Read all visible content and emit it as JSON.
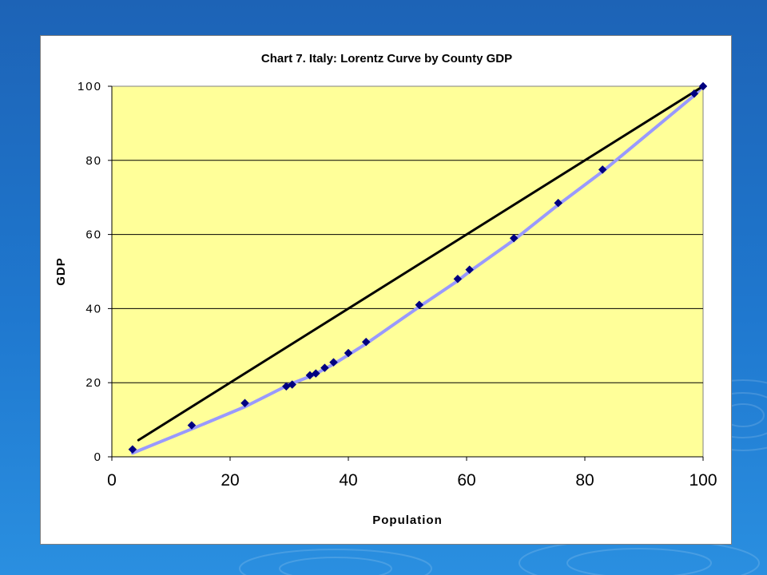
{
  "background": {
    "gradient_top": "#1d63b6",
    "gradient_bottom": "#2a8fe0"
  },
  "chart_data": {
    "type": "scatter",
    "title": "Chart 7. Italy: Lorentz Curve by County GDP",
    "xlabel": "Population",
    "ylabel": "GDP",
    "xlim": [
      0,
      100
    ],
    "ylim": [
      0,
      100
    ],
    "xticks": [
      "0",
      "20",
      "40",
      "60",
      "80",
      "100"
    ],
    "yticks": [
      "0",
      "20",
      "40",
      "60",
      "80",
      "100"
    ],
    "grid": "horizontal",
    "legend": "none",
    "plot_background": "#ffff99",
    "series": [
      {
        "type": "scatter",
        "marker": "diamond",
        "color": "#000080",
        "x": [
          3.5,
          13.5,
          22.5,
          29.5,
          30.5,
          33.5,
          34.5,
          36.0,
          37.5,
          40.0,
          43.0,
          52.0,
          58.5,
          60.5,
          68.0,
          75.5,
          83.0,
          98.5,
          100.0
        ],
        "y": [
          2.0,
          8.5,
          14.5,
          19.0,
          19.5,
          22.0,
          22.5,
          24.0,
          25.5,
          28.0,
          31.0,
          41.0,
          48.0,
          50.5,
          59.0,
          68.5,
          77.5,
          98.0,
          100.0
        ]
      },
      {
        "type": "line",
        "color": "#9999ff",
        "x": [
          3.5,
          13.5,
          22.5,
          30.0,
          34.0,
          37.5,
          40.0,
          43.0,
          52.0,
          58.5,
          60.5,
          68.0,
          75.5,
          83.0,
          98.5,
          100.0
        ],
        "y": [
          1.0,
          7.5,
          13.5,
          19.5,
          22.0,
          25.0,
          27.5,
          30.5,
          40.5,
          47.5,
          50.0,
          58.5,
          68.0,
          77.0,
          97.5,
          100.0
        ]
      },
      {
        "type": "line",
        "color": "#000000",
        "x": [
          4.5,
          100.0
        ],
        "y": [
          4.5,
          100.0
        ]
      }
    ]
  }
}
